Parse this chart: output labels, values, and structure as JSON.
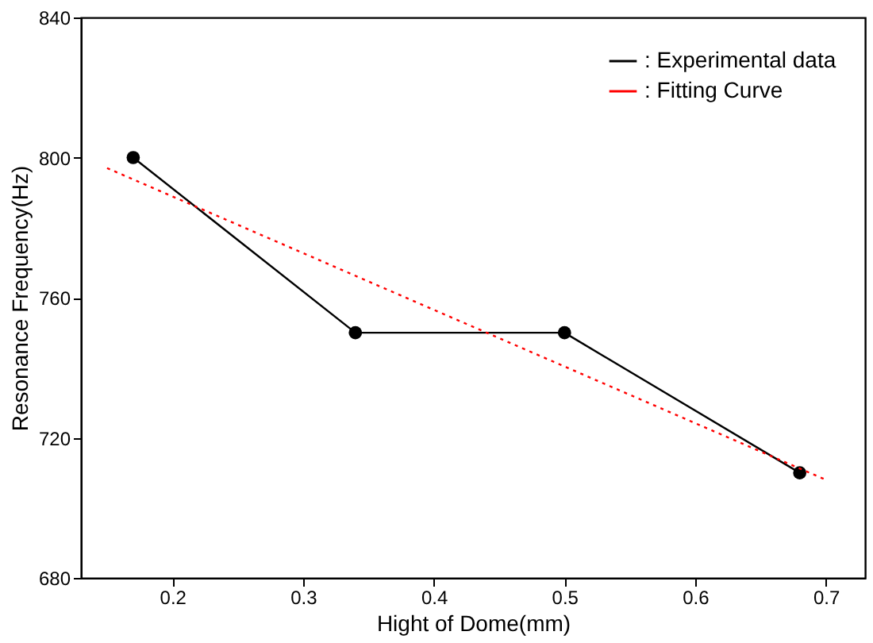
{
  "chart_data": {
    "type": "line",
    "xlabel": "Hight of Dome(mm)",
    "ylabel": "Resonance Frequency(Hz)",
    "xlim": [
      0.13,
      0.73
    ],
    "xticks": [
      0.2,
      0.3,
      0.4,
      0.5,
      0.6,
      0.7
    ],
    "ylim": [
      680,
      840
    ],
    "yticks": [
      680,
      720,
      760,
      800,
      840
    ],
    "grid": false,
    "legend": "top right",
    "series": [
      {
        "name": ": Experimental data",
        "color": "#000000",
        "marker": "circle",
        "line_style": "solid",
        "x": [
          0.17,
          0.34,
          0.5,
          0.68
        ],
        "values": [
          800,
          750,
          750,
          710
        ]
      },
      {
        "name": ": Fitting Curve",
        "color": "#ff0000",
        "marker": "none",
        "line_style": "dotted",
        "x": [
          0.15,
          0.7
        ],
        "values": [
          797,
          708
        ]
      }
    ]
  }
}
